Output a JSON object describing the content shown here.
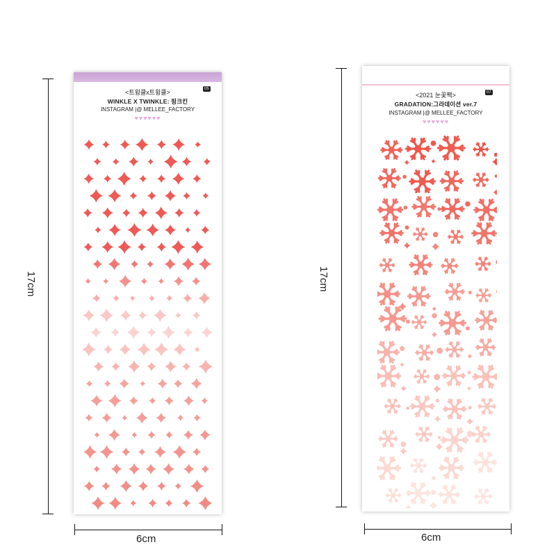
{
  "left_sheet": {
    "title_korean": "<트윙클x트윙클>",
    "page_number": "05",
    "subtitle": "WINKLE X TWINKLE: 핑크킨",
    "instagram": "INSTAGRAM |@ MELLEE_FACTORY",
    "hearts": "♥♥♥♥♥♥",
    "sticker_icon": "sparkle-icon",
    "colors": {
      "top": "#ee5a55",
      "bottom": "#f4a49e",
      "mid": "#fde4e2"
    }
  },
  "right_sheet": {
    "title_korean": "<2021 눈꽃팩>",
    "page_number": "07",
    "subtitle": "GRADATION:그라데이션 ver.7",
    "instagram": "INSTAGRAM |@ MELLEE_FACTORY",
    "hearts": "♥♥♥♥♥♥",
    "sticker_icon": "snowflake-icon",
    "colors": {
      "top": "#ee5a50",
      "bottom": "#fde6df"
    }
  },
  "dimensions": {
    "left_height": "17cm",
    "left_width": "6cm",
    "right_height": "17cm",
    "right_width": "6cm"
  }
}
